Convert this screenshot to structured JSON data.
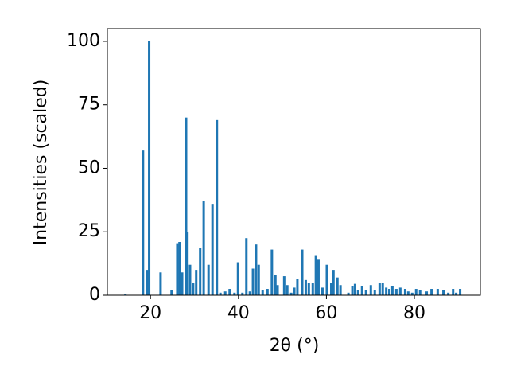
{
  "chart_data": {
    "type": "bar",
    "xlabel": "2θ (°)",
    "ylabel": "Intensities (scaled)",
    "color": "#1f77b4",
    "x": [
      14.3,
      18.3,
      19.2,
      19.7,
      22.3,
      24.8,
      26.1,
      26.6,
      27.2,
      28.1,
      28.4,
      29.0,
      29.7,
      30.4,
      31.3,
      32.1,
      33.2,
      34.1,
      35.1,
      35.9,
      37.0,
      38.0,
      39.1,
      39.9,
      40.9,
      41.8,
      42.6,
      43.3,
      44.0,
      44.6,
      45.5,
      46.6,
      47.6,
      48.4,
      48.9,
      50.4,
      51.1,
      52.0,
      52.7,
      53.4,
      54.5,
      55.3,
      56.0,
      56.9,
      57.6,
      58.2,
      59.1,
      60.1,
      61.1,
      61.6,
      62.5,
      63.2,
      65.0,
      65.9,
      66.5,
      67.2,
      68.1,
      69.0,
      70.1,
      71.0,
      72.1,
      72.8,
      73.6,
      74.3,
      75.0,
      75.9,
      76.8,
      77.9,
      78.6,
      79.5,
      80.4,
      81.3,
      82.8,
      83.9,
      85.3,
      86.6,
      87.7,
      88.8,
      89.5,
      90.4
    ],
    "values": [
      0.3,
      57,
      10,
      100,
      9,
      2,
      20.5,
      21,
      9,
      70,
      25,
      12,
      5,
      10,
      18.5,
      37,
      12,
      36,
      69,
      1,
      1.5,
      2.5,
      1,
      13,
      1,
      22.5,
      1.5,
      10.5,
      20,
      12,
      2,
      2.5,
      18,
      8,
      4,
      7.5,
      4,
      1,
      3,
      6.5,
      18,
      6,
      5,
      5,
      15.5,
      14,
      3,
      12,
      5,
      10,
      7,
      4,
      1,
      3.5,
      4.5,
      2,
      3.5,
      2,
      4,
      2,
      5,
      5,
      3,
      2.5,
      3.5,
      2.5,
      3,
      2.5,
      1.5,
      1,
      2.5,
      2,
      1.5,
      2.5,
      2.5,
      2,
      1,
      2.5,
      1,
      2.5
    ],
    "xlim": [
      10.2,
      95.0
    ],
    "ylim": [
      0,
      105
    ],
    "xticks": [
      20,
      40,
      60,
      80
    ],
    "yticks": [
      0,
      25,
      50,
      75,
      100
    ]
  }
}
